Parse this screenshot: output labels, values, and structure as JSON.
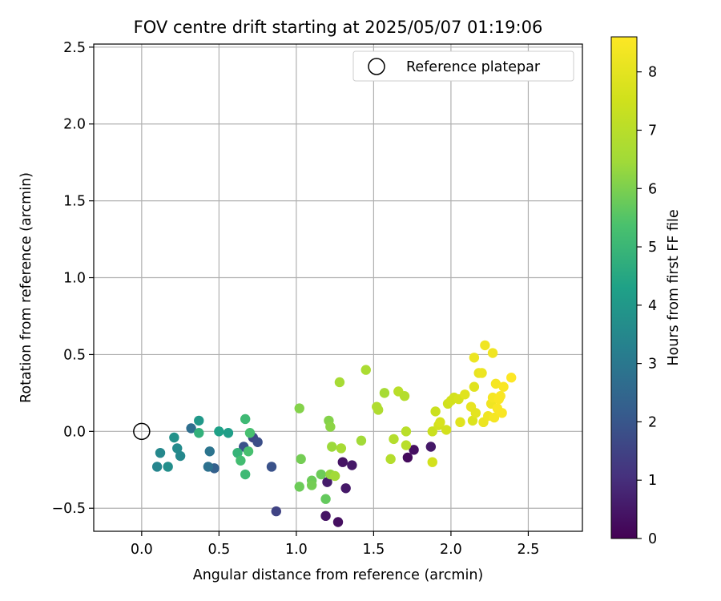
{
  "chart_data": {
    "type": "scatter",
    "title": "FOV centre drift starting at 2025/05/07 01:19:06",
    "xlabel": "Angular distance from reference (arcmin)",
    "ylabel": "Rotation from reference (arcmin)",
    "xlim": [
      -0.31,
      2.85
    ],
    "ylim": [
      -0.65,
      2.52
    ],
    "xticks": [
      0.0,
      0.5,
      1.0,
      1.5,
      2.0,
      2.5
    ],
    "xtick_labels": [
      "0.0",
      "0.5",
      "1.0",
      "1.5",
      "2.0",
      "2.5"
    ],
    "yticks": [
      -0.5,
      0.0,
      0.5,
      1.0,
      1.5,
      2.0,
      2.5
    ],
    "ytick_labels": [
      "−0.5",
      "0.0",
      "0.5",
      "1.0",
      "1.5",
      "2.0",
      "2.5"
    ],
    "grid": true,
    "legend": {
      "position": "top-right",
      "entries": [
        {
          "label": "Reference platepar",
          "marker": "open-circle"
        }
      ]
    },
    "reference_point": {
      "x": 0.0,
      "y": 0.0
    },
    "colorbar": {
      "label": "Hours from first FF file",
      "colormap": "viridis",
      "range": [
        0,
        8.6
      ],
      "ticks": [
        0,
        1,
        2,
        3,
        4,
        5,
        6,
        7,
        8
      ],
      "tick_labels": [
        "0",
        "1",
        "2",
        "3",
        "4",
        "5",
        "6",
        "7",
        "8"
      ]
    },
    "points": [
      {
        "x": 1.27,
        "y": -0.59,
        "h": 0.3
      },
      {
        "x": 1.19,
        "y": -0.55,
        "h": 0.4
      },
      {
        "x": 1.32,
        "y": -0.37,
        "h": 0.5
      },
      {
        "x": 1.3,
        "y": -0.2,
        "h": 0.4
      },
      {
        "x": 1.36,
        "y": -0.22,
        "h": 0.5
      },
      {
        "x": 1.2,
        "y": -0.33,
        "h": 0.6
      },
      {
        "x": 1.72,
        "y": -0.17,
        "h": 0.2
      },
      {
        "x": 1.76,
        "y": -0.12,
        "h": 0.3
      },
      {
        "x": 1.87,
        "y": -0.1,
        "h": 0.5
      },
      {
        "x": 0.87,
        "y": -0.52,
        "h": 1.5
      },
      {
        "x": 0.84,
        "y": -0.23,
        "h": 1.9
      },
      {
        "x": 0.72,
        "y": -0.04,
        "h": 1.6
      },
      {
        "x": 0.75,
        "y": -0.07,
        "h": 1.8
      },
      {
        "x": 0.66,
        "y": -0.1,
        "h": 1.9
      },
      {
        "x": 0.47,
        "y": -0.24,
        "h": 2.3
      },
      {
        "x": 0.43,
        "y": -0.23,
        "h": 2.8
      },
      {
        "x": 0.44,
        "y": -0.13,
        "h": 2.9
      },
      {
        "x": 0.32,
        "y": 0.02,
        "h": 2.7
      },
      {
        "x": 0.1,
        "y": -0.23,
        "h": 3.4
      },
      {
        "x": 0.12,
        "y": -0.14,
        "h": 3.5
      },
      {
        "x": 0.17,
        "y": -0.23,
        "h": 3.7
      },
      {
        "x": 0.21,
        "y": -0.04,
        "h": 3.8
      },
      {
        "x": 0.23,
        "y": -0.11,
        "h": 3.6
      },
      {
        "x": 0.25,
        "y": -0.16,
        "h": 3.5
      },
      {
        "x": 0.37,
        "y": 0.07,
        "h": 4.0
      },
      {
        "x": 0.37,
        "y": -0.01,
        "h": 4.8
      },
      {
        "x": 0.5,
        "y": 0.0,
        "h": 4.3
      },
      {
        "x": 0.56,
        "y": -0.01,
        "h": 4.2
      },
      {
        "x": 0.62,
        "y": -0.14,
        "h": 4.9
      },
      {
        "x": 0.64,
        "y": -0.19,
        "h": 5.2
      },
      {
        "x": 0.67,
        "y": 0.08,
        "h": 5.1
      },
      {
        "x": 0.67,
        "y": -0.28,
        "h": 5.1
      },
      {
        "x": 0.69,
        "y": -0.13,
        "h": 5.3
      },
      {
        "x": 0.7,
        "y": -0.01,
        "h": 5.3
      },
      {
        "x": 1.02,
        "y": 0.15,
        "h": 6.1
      },
      {
        "x": 1.03,
        "y": -0.18,
        "h": 5.9
      },
      {
        "x": 1.02,
        "y": -0.36,
        "h": 5.8
      },
      {
        "x": 1.1,
        "y": -0.32,
        "h": 5.8
      },
      {
        "x": 1.1,
        "y": -0.35,
        "h": 5.9
      },
      {
        "x": 1.16,
        "y": -0.28,
        "h": 5.8
      },
      {
        "x": 1.19,
        "y": -0.44,
        "h": 5.7
      },
      {
        "x": 1.21,
        "y": 0.07,
        "h": 6.1
      },
      {
        "x": 1.22,
        "y": 0.03,
        "h": 6.2
      },
      {
        "x": 1.22,
        "y": -0.28,
        "h": 6.3
      },
      {
        "x": 1.23,
        "y": -0.1,
        "h": 6.4
      },
      {
        "x": 1.25,
        "y": -0.29,
        "h": 6.5
      },
      {
        "x": 1.28,
        "y": 0.32,
        "h": 6.6
      },
      {
        "x": 1.29,
        "y": -0.11,
        "h": 6.6
      },
      {
        "x": 1.42,
        "y": -0.06,
        "h": 6.5
      },
      {
        "x": 1.45,
        "y": 0.4,
        "h": 6.7
      },
      {
        "x": 1.52,
        "y": 0.16,
        "h": 6.8
      },
      {
        "x": 1.53,
        "y": 0.14,
        "h": 6.8
      },
      {
        "x": 1.57,
        "y": 0.25,
        "h": 6.6
      },
      {
        "x": 1.61,
        "y": -0.18,
        "h": 6.9
      },
      {
        "x": 1.63,
        "y": -0.05,
        "h": 6.9
      },
      {
        "x": 1.66,
        "y": 0.26,
        "h": 7.0
      },
      {
        "x": 1.7,
        "y": 0.23,
        "h": 6.9
      },
      {
        "x": 1.71,
        "y": 0.0,
        "h": 7.0
      },
      {
        "x": 1.71,
        "y": -0.09,
        "h": 7.0
      },
      {
        "x": 1.88,
        "y": 0.0,
        "h": 7.4
      },
      {
        "x": 1.88,
        "y": -0.2,
        "h": 7.6
      },
      {
        "x": 1.9,
        "y": 0.13,
        "h": 7.4
      },
      {
        "x": 1.92,
        "y": 0.04,
        "h": 7.6
      },
      {
        "x": 1.93,
        "y": 0.06,
        "h": 7.7
      },
      {
        "x": 1.97,
        "y": 0.01,
        "h": 7.6
      },
      {
        "x": 1.98,
        "y": 0.18,
        "h": 7.5
      },
      {
        "x": 2.0,
        "y": 0.2,
        "h": 7.6
      },
      {
        "x": 2.02,
        "y": 0.22,
        "h": 7.6
      },
      {
        "x": 2.05,
        "y": 0.21,
        "h": 7.7
      },
      {
        "x": 2.06,
        "y": 0.06,
        "h": 7.9
      },
      {
        "x": 2.09,
        "y": 0.24,
        "h": 7.9
      },
      {
        "x": 2.13,
        "y": 0.16,
        "h": 8.1
      },
      {
        "x": 2.14,
        "y": 0.07,
        "h": 7.8
      },
      {
        "x": 2.15,
        "y": 0.29,
        "h": 7.9
      },
      {
        "x": 2.15,
        "y": 0.48,
        "h": 8.2
      },
      {
        "x": 2.16,
        "y": 0.12,
        "h": 8.0
      },
      {
        "x": 2.18,
        "y": 0.38,
        "h": 8.1
      },
      {
        "x": 2.2,
        "y": 0.38,
        "h": 8.2
      },
      {
        "x": 2.21,
        "y": 0.06,
        "h": 8.2
      },
      {
        "x": 2.22,
        "y": 0.56,
        "h": 8.3
      },
      {
        "x": 2.24,
        "y": 0.1,
        "h": 8.3
      },
      {
        "x": 2.26,
        "y": 0.18,
        "h": 8.3
      },
      {
        "x": 2.27,
        "y": 0.22,
        "h": 8.4
      },
      {
        "x": 2.27,
        "y": 0.51,
        "h": 8.3
      },
      {
        "x": 2.28,
        "y": 0.09,
        "h": 8.4
      },
      {
        "x": 2.29,
        "y": 0.31,
        "h": 8.4
      },
      {
        "x": 2.3,
        "y": 0.15,
        "h": 8.5
      },
      {
        "x": 2.31,
        "y": 0.21,
        "h": 8.5
      },
      {
        "x": 2.32,
        "y": 0.23,
        "h": 8.5
      },
      {
        "x": 2.33,
        "y": 0.12,
        "h": 8.5
      },
      {
        "x": 2.34,
        "y": 0.29,
        "h": 8.5
      },
      {
        "x": 2.39,
        "y": 0.35,
        "h": 8.6
      }
    ]
  }
}
